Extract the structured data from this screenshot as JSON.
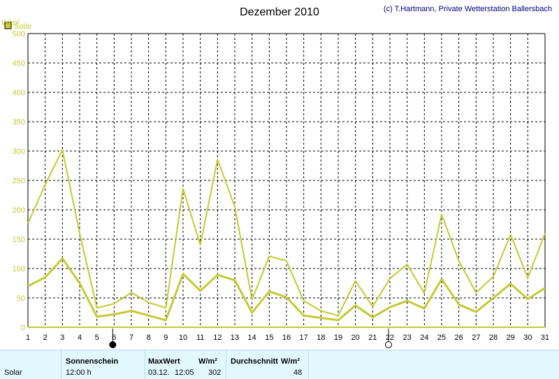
{
  "header": {
    "title": "Dezember 2010",
    "copyright": "(c) T.Hartmann, Private Wetterstation Ballersbach"
  },
  "legend": {
    "label": "Solar",
    "color": "#c8c832"
  },
  "chart_data": {
    "type": "line",
    "ylabel": "W/m²",
    "ylim": [
      0,
      500
    ],
    "yticks": [
      0,
      50,
      100,
      150,
      200,
      250,
      300,
      350,
      400,
      450,
      500
    ],
    "x": [
      1,
      2,
      3,
      4,
      5,
      6,
      7,
      8,
      9,
      10,
      11,
      12,
      13,
      14,
      15,
      16,
      17,
      18,
      19,
      20,
      21,
      22,
      23,
      24,
      25,
      26,
      27,
      28,
      29,
      30,
      31
    ],
    "grid": true,
    "series": [
      {
        "name": "Solar",
        "values": [
          177,
          243,
          302,
          160,
          33,
          40,
          59,
          42,
          33,
          236,
          140,
          286,
          205,
          47,
          121,
          113,
          45,
          28,
          20,
          79,
          35,
          83,
          107,
          58,
          192,
          113,
          59,
          86,
          158,
          84,
          160
        ],
        "color": "#c8c832"
      },
      {
        "values": [
          70,
          85,
          117,
          75,
          18,
          22,
          28,
          20,
          12,
          91,
          62,
          89,
          80,
          25,
          61,
          51,
          20,
          16,
          12,
          37,
          17,
          34,
          45,
          32,
          82,
          39,
          26,
          50,
          74,
          48,
          67
        ],
        "color": "#c8c832"
      }
    ],
    "markers": [
      {
        "type": "new-moon",
        "x": 6
      },
      {
        "type": "full-moon",
        "x": 22
      }
    ]
  },
  "table": {
    "row_label": "Solar",
    "sonnenschein_header": "Sonnenschein",
    "sonnenschein_value": "12:00 h",
    "maxwert_header": "MaxWert",
    "maxwert_unit": "W/m²",
    "maxwert_date": "03.12.",
    "maxwert_time": "12:05",
    "maxwert_value": "302",
    "durchschnitt_header": "Durchschnitt",
    "durchschnitt_unit": "W/m²",
    "durchschnitt_value": "48"
  }
}
